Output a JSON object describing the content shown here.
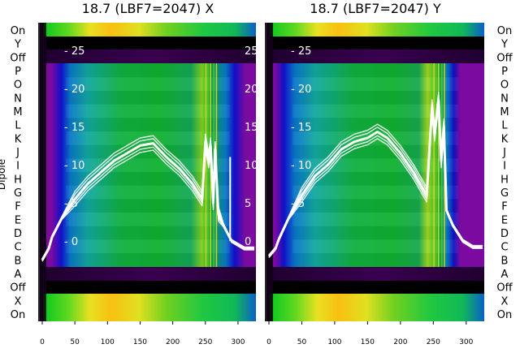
{
  "chart_data": [
    {
      "type": "heatmap",
      "title": "18.7 (LBF7=2047) X",
      "ylabel": "Dipole",
      "xlim": [
        0,
        325
      ],
      "x_ticks": [
        "0",
        "50",
        "100",
        "150",
        "200",
        "250",
        "300"
      ],
      "y_categories": [
        "On",
        "Y",
        "Off",
        "P",
        "O",
        "N",
        "M",
        "L",
        "K",
        "J",
        "I",
        "H",
        "G",
        "F",
        "E",
        "D",
        "C",
        "B",
        "A",
        "Off",
        "X",
        "On"
      ],
      "inner_axis": {
        "ticks": [
          "25",
          "20",
          "15",
          "10",
          "5",
          "0"
        ],
        "range": [
          0,
          27
        ]
      },
      "overlay_line": {
        "color": "#ffffff",
        "x": [
          0,
          10,
          15,
          30,
          50,
          70,
          90,
          110,
          130,
          150,
          170,
          190,
          210,
          230,
          245,
          250,
          255,
          258,
          262,
          265,
          270,
          278,
          290,
          300,
          310,
          325
        ],
        "y": [
          -2.5,
          -1,
          0.5,
          3,
          5.5,
          7.5,
          9,
          10.5,
          11.5,
          12.5,
          12.8,
          11,
          9.5,
          7.5,
          5.5,
          13,
          10.5,
          12.5,
          5,
          12,
          3.5,
          2,
          0,
          -0.5,
          -1,
          -1
        ]
      }
    },
    {
      "type": "heatmap",
      "title": "18.7 (LBF7=2047) Y",
      "ylabel": "",
      "xlim": [
        0,
        325
      ],
      "x_ticks": [
        "0",
        "50",
        "100",
        "150",
        "200",
        "250",
        "300"
      ],
      "y_categories": [
        "On",
        "Y",
        "Off",
        "P",
        "O",
        "N",
        "M",
        "L",
        "K",
        "J",
        "I",
        "H",
        "G",
        "F",
        "E",
        "D",
        "C",
        "B",
        "A",
        "Off",
        "X",
        "On"
      ],
      "inner_axis": {
        "ticks": [
          "25",
          "20",
          "15",
          "10",
          "5"
        ],
        "range": [
          0,
          27
        ]
      },
      "overlay_line": {
        "color": "#ffffff",
        "x": [
          0,
          10,
          15,
          30,
          50,
          70,
          90,
          110,
          130,
          150,
          165,
          180,
          200,
          220,
          240,
          248,
          252,
          258,
          262,
          266,
          270,
          280,
          295,
          310,
          325
        ],
        "y": [
          -2,
          -1,
          0.2,
          3,
          6,
          8.5,
          10,
          12,
          13,
          13.5,
          14.3,
          13.5,
          11.5,
          9,
          6,
          17.5,
          14,
          18.5,
          10.5,
          15,
          4,
          2,
          0,
          -0.8,
          -0.8
        ]
      }
    }
  ]
}
